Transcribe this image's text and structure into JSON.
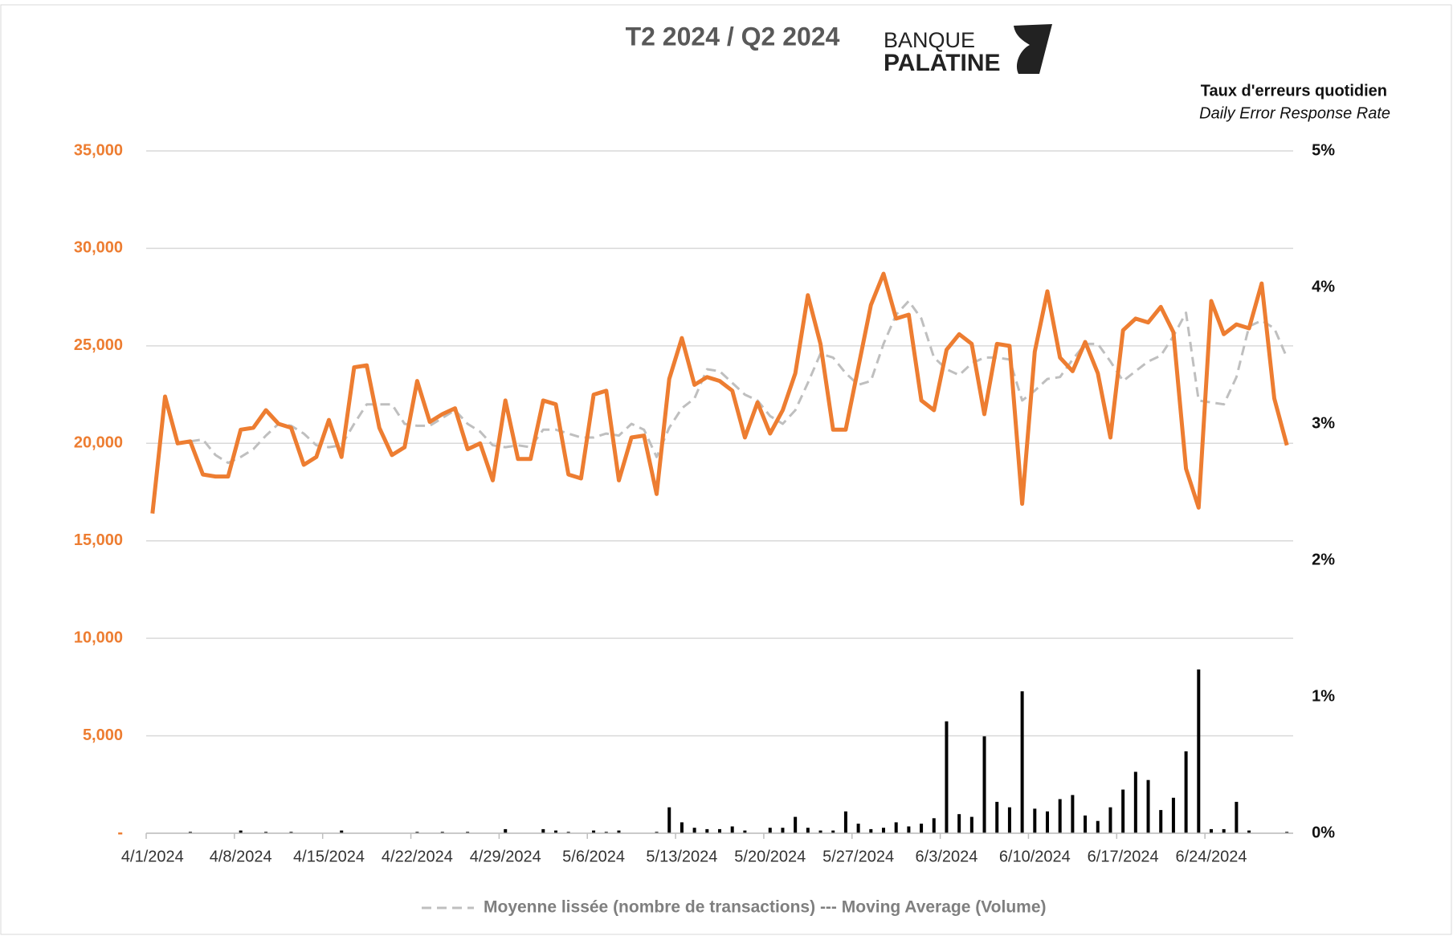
{
  "logo": [
    "BANQUE",
    "PALATINE"
  ],
  "chart_data": {
    "type": "line",
    "title": "T2 2024 / Q2 2024",
    "y2_label": "Taux d'erreurs quotidien",
    "y2_sublabel": "Daily Error Response Rate",
    "categories": [
      "4/1/2024",
      null,
      null,
      null,
      null,
      null,
      null,
      "4/8/2024",
      null,
      null,
      null,
      null,
      null,
      null,
      "4/15/2024",
      null,
      null,
      null,
      null,
      null,
      null,
      "4/22/2024",
      null,
      null,
      null,
      null,
      null,
      null,
      "4/29/2024",
      null,
      null,
      null,
      null,
      null,
      null,
      "5/6/2024",
      null,
      null,
      null,
      null,
      null,
      null,
      "5/13/2024",
      null,
      null,
      null,
      null,
      null,
      null,
      "5/20/2024",
      null,
      null,
      null,
      null,
      null,
      null,
      "5/27/2024",
      null,
      null,
      null,
      null,
      null,
      null,
      "6/3/2024",
      null,
      null,
      null,
      null,
      null,
      null,
      "6/10/2024",
      null,
      null,
      null,
      null,
      null,
      null,
      "6/17/2024",
      null,
      null,
      null,
      null,
      null,
      null,
      "6/24/2024",
      null,
      null,
      null,
      null,
      null,
      null
    ],
    "series": [
      {
        "type": "line",
        "color": "#ED7D31",
        "values": [
          16400,
          22400,
          20000,
          20100,
          18400,
          18300,
          18300,
          20700,
          20800,
          21700,
          21000,
          20800,
          18900,
          19300,
          21200,
          19300,
          23900,
          24000,
          20800,
          19400,
          19800,
          23200,
          21100,
          21500,
          21800,
          19700,
          20000,
          18100,
          22200,
          19200,
          19200,
          22200,
          22000,
          18400,
          18200,
          22500,
          22700,
          18100,
          20300,
          20400,
          17400,
          23300,
          25400,
          23000,
          23400,
          23200,
          22700,
          20300,
          22100,
          20500,
          21700,
          23600,
          27600,
          25100,
          20700,
          20700,
          23900,
          27100,
          28700,
          26400,
          26600,
          22200,
          21700,
          24800,
          25600,
          25100,
          21500,
          25100,
          25000,
          16900,
          24700,
          27800,
          24400,
          23700,
          25200,
          23600,
          20300,
          25800,
          26400,
          26200,
          27000,
          25700,
          18700,
          16700,
          27300,
          25600,
          26100,
          25900,
          28200,
          22300,
          19900
        ]
      },
      {
        "type": "line",
        "name": "Moyenne lissée (nombre de transactions) --- Moving Average (Volume)",
        "color": "#BFBFBF",
        "dashed": true,
        "values": [
          null,
          null,
          null,
          20100,
          20200,
          19400,
          19000,
          19300,
          19700,
          20400,
          21000,
          20900,
          20500,
          19900,
          19800,
          19900,
          21000,
          22000,
          22000,
          22000,
          21000,
          20900,
          20900,
          21300,
          21700,
          21000,
          20600,
          19900,
          19800,
          19900,
          19800,
          20700,
          20700,
          20500,
          20300,
          20300,
          20500,
          20400,
          21000,
          20700,
          19300,
          20800,
          21800,
          22300,
          23800,
          23700,
          23100,
          22500,
          22200,
          21400,
          21000,
          21700,
          23100,
          24600,
          24400,
          23600,
          23000,
          23200,
          25100,
          26600,
          27300,
          26400,
          24400,
          23800,
          23500,
          24100,
          24400,
          24400,
          24300,
          22200,
          22700,
          23300,
          23400,
          24300,
          25100,
          25100,
          24200,
          23200,
          23700,
          24200,
          24500,
          25500,
          26700,
          22200,
          22100,
          22000,
          23400,
          26000,
          26300,
          25900,
          24400
        ]
      },
      {
        "type": "bar",
        "axis": "y2",
        "color": "#000000",
        "values": [
          0,
          0,
          0,
          0.01,
          0,
          0,
          0,
          0.02,
          0,
          0.01,
          0,
          0.01,
          0,
          0,
          0,
          0.02,
          0,
          0,
          0,
          0,
          0,
          0.01,
          0,
          0.01,
          0,
          0.01,
          0,
          0,
          0.03,
          0,
          0,
          0.03,
          0.02,
          0.01,
          0,
          0.02,
          0.01,
          0.02,
          0,
          0,
          0.01,
          0.19,
          0.08,
          0.04,
          0.03,
          0.03,
          0.05,
          0.02,
          0,
          0.04,
          0.04,
          0.12,
          0.04,
          0.02,
          0.02,
          0.16,
          0.07,
          0.03,
          0.04,
          0.08,
          0.05,
          0.07,
          0.11,
          0.82,
          0.14,
          0.12,
          0.71,
          0.23,
          0.19,
          1.04,
          0.18,
          0.16,
          0.25,
          0.28,
          0.13,
          0.09,
          0.19,
          0.32,
          0.45,
          0.39,
          0.17,
          0.26,
          0.6,
          1.2,
          0.03,
          0.03,
          0.23,
          0.02,
          0,
          0,
          0.01
        ]
      }
    ],
    "ylim": [
      0,
      35000
    ],
    "yticks": [
      {
        "value": 0,
        "label": "-"
      },
      {
        "value": 5000,
        "label": "5,000"
      },
      {
        "value": 10000,
        "label": "10,000"
      },
      {
        "value": 15000,
        "label": "15,000"
      },
      {
        "value": 20000,
        "label": "20,000"
      },
      {
        "value": 25000,
        "label": "25,000"
      },
      {
        "value": 30000,
        "label": "30,000"
      },
      {
        "value": 35000,
        "label": "35,000"
      }
    ],
    "y2lim": [
      0,
      5
    ],
    "y2ticks": [
      {
        "value": 0,
        "label": "0%"
      },
      {
        "value": 1,
        "label": "1%"
      },
      {
        "value": 2,
        "label": "2%"
      },
      {
        "value": 3,
        "label": "3%"
      },
      {
        "value": 4,
        "label": "4%"
      },
      {
        "value": 5,
        "label": "5%"
      }
    ],
    "grid": true,
    "legend": "bottom"
  }
}
